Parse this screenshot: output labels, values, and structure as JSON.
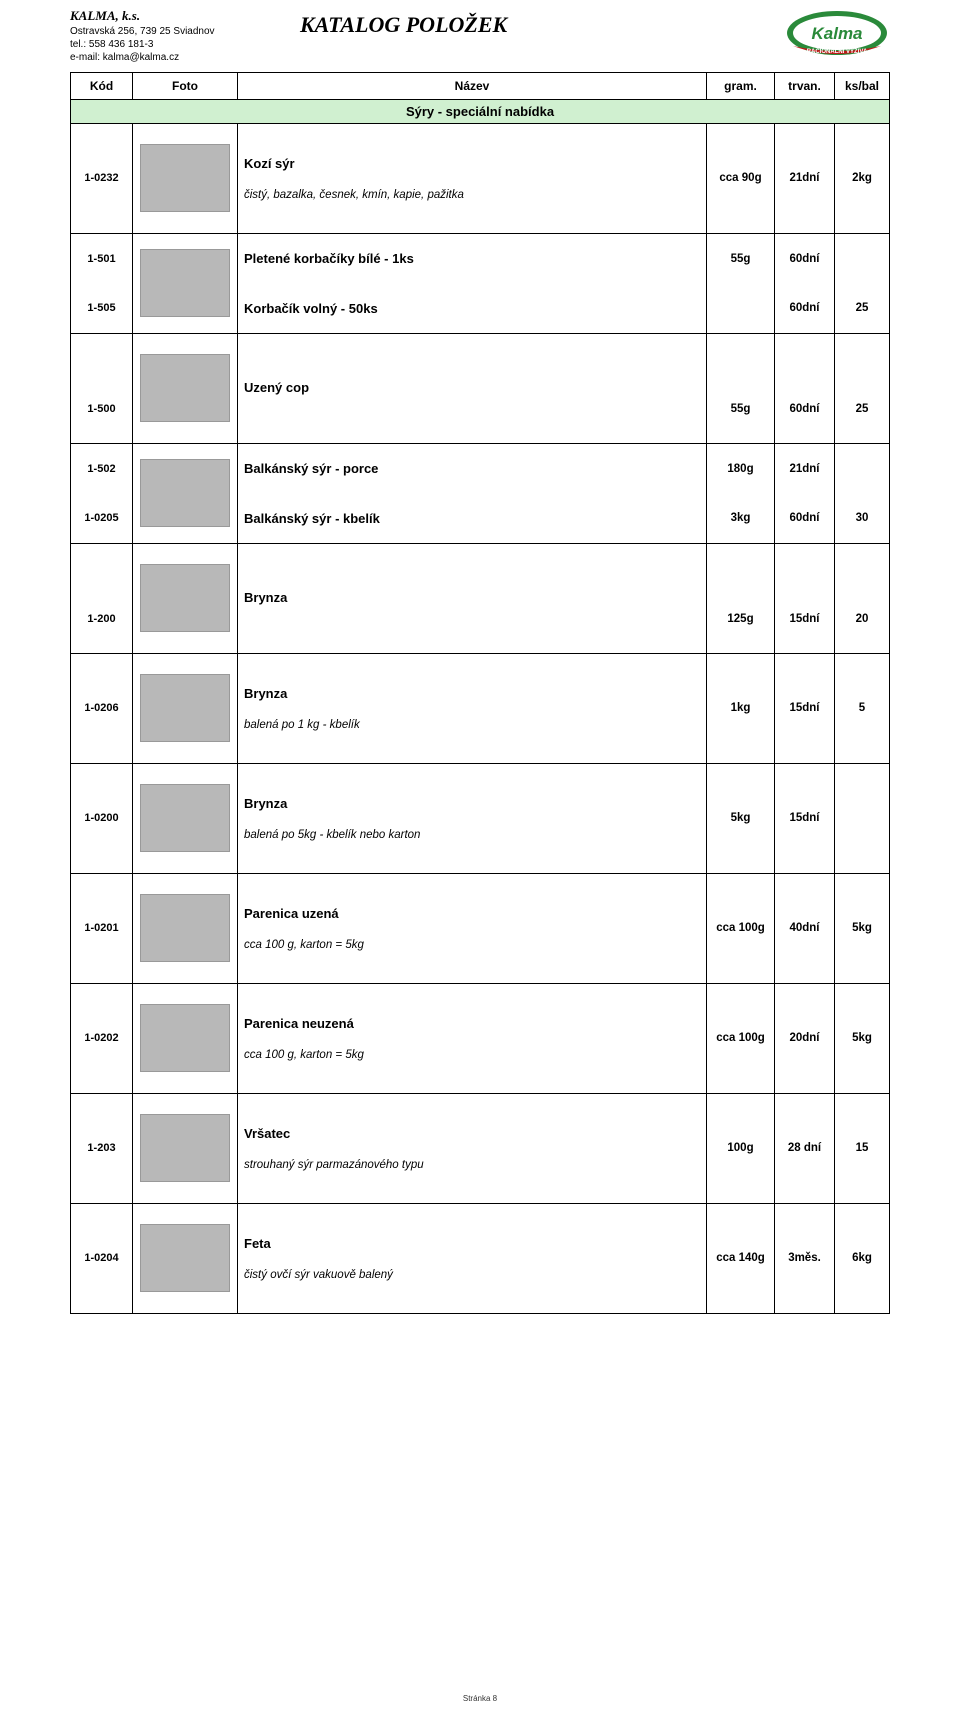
{
  "company": {
    "name": "KALMA, k.s.",
    "addr": "Ostravská 256, 739 25 Sviadnov",
    "tel": "tel.: 558 436 181-3",
    "email": "e-mail: kalma@kalma.cz"
  },
  "title": "KATALOG POLOŽEK",
  "columns": {
    "kod": "Kód",
    "foto": "Foto",
    "nazev": "Název",
    "gram": "gram.",
    "trvan": "trvan.",
    "ksbal": "ks/bal"
  },
  "section": "Sýry - speciální nabídka",
  "groups": [
    {
      "rows": [
        {
          "kod": "1-0232",
          "title": "Kozí sýr",
          "desc": "čistý, bazalka, česnek, kmín, kapie, pažitka",
          "gram": "cca 90g",
          "trvan": "21dní",
          "ksbal": "2kg"
        }
      ],
      "hasPhoto": true
    },
    {
      "rows": [
        {
          "kod": "1-501",
          "plain": "Pletené korbačíky bílé - 1ks",
          "gram": "55g",
          "trvan": "60dní",
          "ksbal": ""
        },
        {
          "kod": "1-505",
          "plain": "Korbačík volný - 50ks",
          "gram": "",
          "trvan": "60dní",
          "ksbal": "25"
        }
      ],
      "hasPhoto": true
    },
    {
      "rows": [
        {
          "kod": "1-500",
          "title": "Uzený cop",
          "desc": "",
          "gram": "55g",
          "trvan": "60dní",
          "ksbal": "25"
        }
      ],
      "hasPhoto": true,
      "titleAbove": true
    },
    {
      "rows": [
        {
          "kod": "1-502",
          "plain": "Balkánský sýr - porce",
          "gram": "180g",
          "trvan": "21dní",
          "ksbal": ""
        },
        {
          "kod": "1-0205",
          "plain": "Balkánský sýr - kbelík",
          "gram": "3kg",
          "trvan": "60dní",
          "ksbal": "30"
        }
      ],
      "hasPhoto": true
    },
    {
      "rows": [
        {
          "kod": "1-200",
          "title": "Brynza",
          "desc": "",
          "gram": "125g",
          "trvan": "15dní",
          "ksbal": "20"
        }
      ],
      "hasPhoto": true,
      "titleAbove": true
    },
    {
      "rows": [
        {
          "kod": "1-0206",
          "title": "Brynza",
          "desc": "balená po 1 kg - kbelík",
          "gram": "1kg",
          "trvan": "15dní",
          "ksbal": "5"
        }
      ],
      "hasPhoto": true
    },
    {
      "rows": [
        {
          "kod": "1-0200",
          "title": "Brynza",
          "desc": "balená po 5kg - kbelík nebo karton",
          "gram": "5kg",
          "trvan": "15dní",
          "ksbal": ""
        }
      ],
      "hasPhoto": true
    },
    {
      "rows": [
        {
          "kod": "1-0201",
          "title": "Parenica uzená",
          "desc": "cca 100 g, karton = 5kg",
          "gram": "cca 100g",
          "trvan": "40dní",
          "ksbal": "5kg"
        }
      ],
      "hasPhoto": true
    },
    {
      "rows": [
        {
          "kod": "1-0202",
          "title": "Parenica neuzená",
          "desc": "cca 100 g, karton = 5kg",
          "gram": "cca 100g",
          "trvan": "20dní",
          "ksbal": "5kg"
        }
      ],
      "hasPhoto": true
    },
    {
      "rows": [
        {
          "kod": "1-203",
          "title": "Vršatec",
          "desc": "strouhaný sýr parmazánového typu",
          "gram": "100g",
          "trvan": "28 dní",
          "ksbal": "15"
        }
      ],
      "hasPhoto": true
    },
    {
      "rows": [
        {
          "kod": "1-0204",
          "title": "Feta",
          "desc": "čistý ovčí sýr vakuově balený",
          "gram": "cca 140g",
          "trvan": "3měs.",
          "ksbal": "6kg"
        }
      ],
      "hasPhoto": true
    }
  ],
  "footer": "Stránka 8",
  "logo_colors": {
    "top": "#2a8a3a",
    "band": "#c01818",
    "text": "#ffffff"
  }
}
